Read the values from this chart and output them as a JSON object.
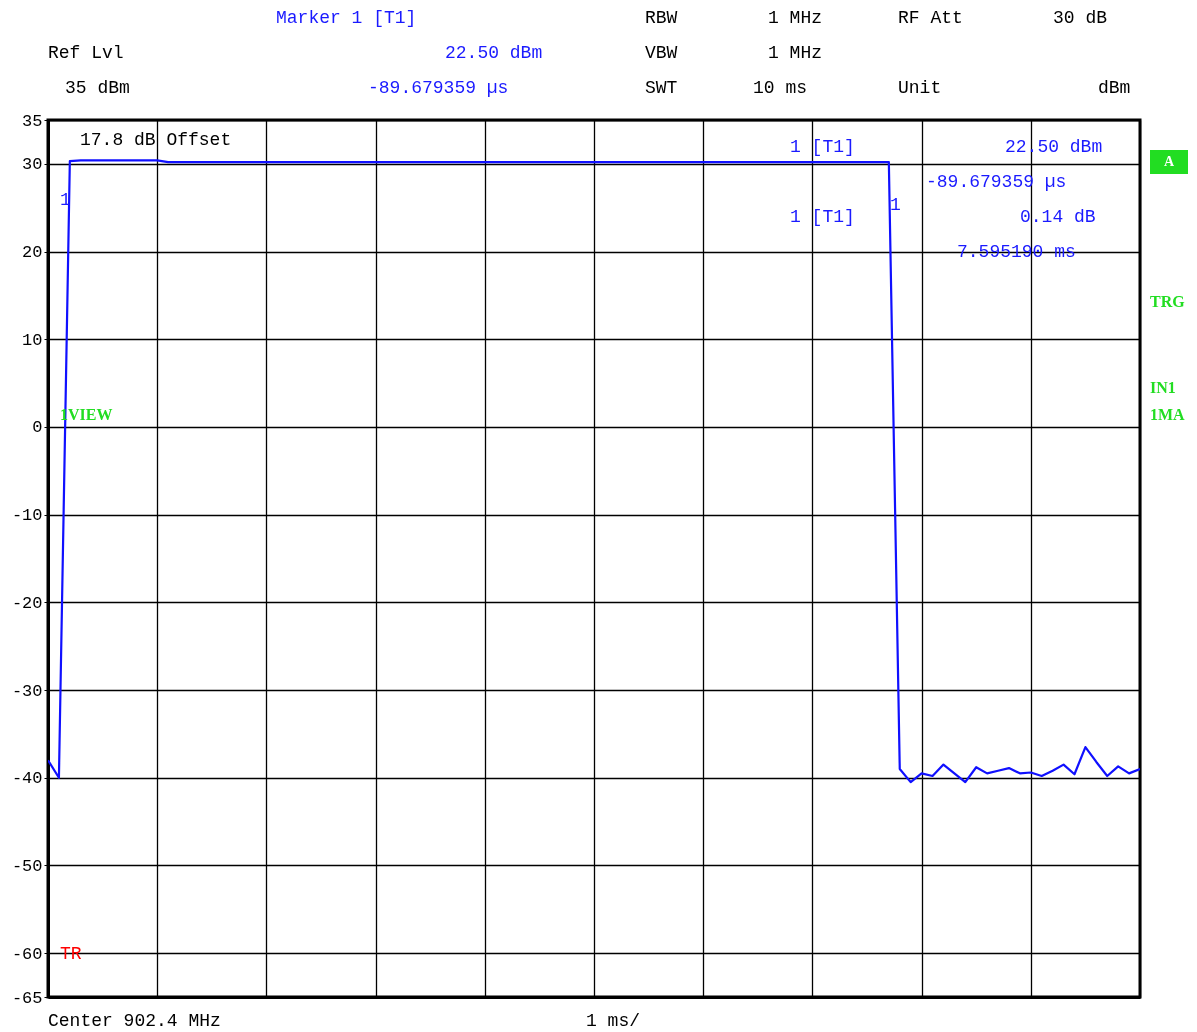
{
  "chart_data": {
    "type": "line",
    "categories": [
      null,
      null,
      null,
      null,
      null,
      null,
      null,
      null,
      null,
      null,
      null,
      null,
      null,
      null,
      null,
      null,
      null,
      null,
      null,
      null,
      null,
      null,
      null,
      null,
      null,
      null,
      null,
      null,
      null,
      null,
      null,
      null,
      null,
      null,
      null,
      null,
      null,
      null,
      null,
      null,
      null,
      null,
      null,
      null,
      null,
      null,
      null,
      null,
      null,
      null,
      null,
      null,
      null,
      null,
      null,
      null,
      null,
      null,
      null,
      null,
      null,
      null,
      null,
      null,
      null,
      null,
      null,
      null,
      null,
      null,
      null,
      null,
      null,
      null,
      null,
      null,
      null,
      null,
      null,
      null,
      null,
      null,
      null,
      null,
      null,
      null,
      null,
      null,
      null,
      null,
      null,
      null,
      null,
      null,
      null,
      null,
      null,
      null,
      null,
      null,
      null
    ],
    "series": [
      {
        "color": "#1010ff",
        "values": [
          -38,
          -40,
          30.3,
          30.4,
          30.4,
          30.4,
          30.4,
          30.4,
          30.4,
          30.4,
          30.4,
          30.2,
          30.2,
          30.2,
          30.2,
          30.2,
          30.2,
          30.2,
          30.2,
          30.2,
          30.2,
          30.2,
          30.2,
          30.2,
          30.2,
          30.2,
          30.2,
          30.2,
          30.2,
          30.2,
          30.2,
          30.2,
          30.2,
          30.2,
          30.2,
          30.2,
          30.2,
          30.2,
          30.2,
          30.2,
          30.2,
          30.2,
          30.2,
          30.2,
          30.2,
          30.2,
          30.2,
          30.2,
          30.2,
          30.2,
          30.2,
          30.2,
          30.2,
          30.2,
          30.2,
          30.2,
          30.2,
          30.2,
          30.2,
          30.2,
          30.2,
          30.2,
          30.2,
          30.2,
          30.2,
          30.2,
          30.2,
          30.2,
          30.2,
          30.2,
          30.2,
          30.2,
          30.2,
          30.2,
          30.2,
          30.2,
          30.2,
          30.2,
          -39,
          -40.5,
          -39.5,
          -39.8,
          -38.5,
          -39.5,
          -40.5,
          -38.8,
          -39.5,
          -39.2,
          -38.9,
          -39.5,
          -39.4,
          -39.8,
          -39.2,
          -38.5,
          -39.6,
          -36.5,
          -38.2,
          -39.8,
          -38.7,
          -39.5,
          -39
        ]
      }
    ],
    "ylim": [
      -65,
      35
    ],
    "yticks": [
      -65,
      -60,
      -50,
      -40,
      -30,
      -20,
      -10,
      0,
      10,
      20,
      30,
      35
    ],
    "grid": true,
    "annotations": [
      "Marker 1 [T1]",
      "RBW",
      "1 MHz",
      "RF Att",
      "30 dB",
      "Ref Lvl",
      "22.50 dBm",
      "VBW",
      "1 MHz",
      "35 dBm",
      "-89.679359 µs",
      "SWT",
      "10 ms",
      "Unit",
      "dBm",
      "17.8 dB Offset",
      "1 [T1]",
      "22.50 dBm",
      "-89.679359 µs",
      "1 [T1]",
      "0.14 dB",
      "7.595190 ms",
      "A",
      "TRG",
      "IN1",
      "1MA",
      "1VIEW",
      "Center 902.4 MHz",
      "1 ms/",
      "1",
      "1",
      "TR"
    ]
  }
}
